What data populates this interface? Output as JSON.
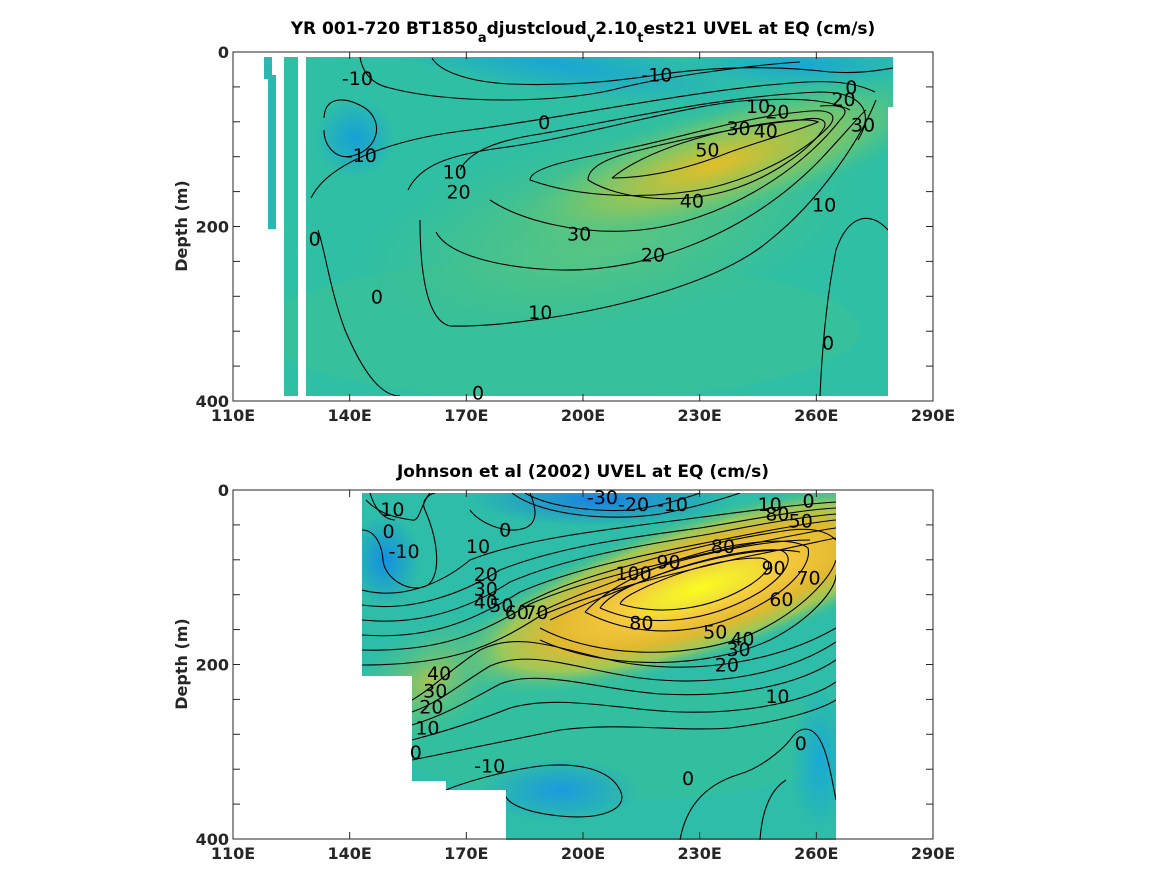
{
  "chart_data": [
    {
      "type": "contour",
      "title": "YR 001-720 BT1850",
      "title_sub1": "a",
      "title_mid": "djustcloud",
      "title_sub2": "v",
      "title_mid2": "2.10",
      "title_sub3": "t",
      "title_end": "est21 UVEL at EQ (cm/s)",
      "xlabel": "",
      "ylabel": "Depth (m)",
      "xlim": [
        110,
        290
      ],
      "ylim": [
        0,
        400
      ],
      "y_reversed": true,
      "x_ticks": [
        "110E",
        "140E",
        "170E",
        "200E",
        "230E",
        "260E",
        "290E"
      ],
      "y_ticks": [
        "0",
        "200",
        "400"
      ],
      "colormap": "parula",
      "contour_labels": [
        {
          "text": "-10",
          "lon": 142,
          "depth": 30
        },
        {
          "text": "-10",
          "lon": 219,
          "depth": 26
        },
        {
          "text": "0",
          "lon": 269,
          "depth": 40
        },
        {
          "text": "10",
          "lon": 245,
          "depth": 62
        },
        {
          "text": "20",
          "lon": 250,
          "depth": 68
        },
        {
          "text": "20",
          "lon": 267,
          "depth": 54
        },
        {
          "text": "0",
          "lon": 190,
          "depth": 80
        },
        {
          "text": "30",
          "lon": 240,
          "depth": 87
        },
        {
          "text": "40",
          "lon": 247,
          "depth": 90
        },
        {
          "text": "30",
          "lon": 272,
          "depth": 83
        },
        {
          "text": "-10",
          "lon": 143,
          "depth": 118
        },
        {
          "text": "50",
          "lon": 232,
          "depth": 112
        },
        {
          "text": "10",
          "lon": 167,
          "depth": 137
        },
        {
          "text": "20",
          "lon": 168,
          "depth": 160
        },
        {
          "text": "40",
          "lon": 228,
          "depth": 170
        },
        {
          "text": "10",
          "lon": 262,
          "depth": 175
        },
        {
          "text": "0",
          "lon": 131,
          "depth": 214
        },
        {
          "text": "30",
          "lon": 199,
          "depth": 208
        },
        {
          "text": "20",
          "lon": 218,
          "depth": 232
        },
        {
          "text": "0",
          "lon": 147,
          "depth": 280
        },
        {
          "text": "10",
          "lon": 189,
          "depth": 298
        },
        {
          "text": "0",
          "lon": 263,
          "depth": 333
        },
        {
          "text": "0",
          "lon": 173,
          "depth": 390
        }
      ]
    },
    {
      "type": "contour",
      "title": "Johnson et al (2002) UVEL at EQ (cm/s)",
      "xlabel": "",
      "ylabel": "Depth (m)",
      "xlim": [
        110,
        290
      ],
      "ylim": [
        0,
        400
      ],
      "y_reversed": true,
      "x_ticks": [
        "110E",
        "140E",
        "170E",
        "200E",
        "230E",
        "260E",
        "290E"
      ],
      "y_ticks": [
        "0",
        "200",
        "400"
      ],
      "colormap": "parula",
      "contour_labels": [
        {
          "text": "-30",
          "lon": 205,
          "depth": 8
        },
        {
          "text": "-20",
          "lon": 213,
          "depth": 16
        },
        {
          "text": "-10",
          "lon": 223,
          "depth": 16
        },
        {
          "text": "10",
          "lon": 248,
          "depth": 16
        },
        {
          "text": "0",
          "lon": 258,
          "depth": 12
        },
        {
          "text": "10",
          "lon": 151,
          "depth": 22
        },
        {
          "text": "80",
          "lon": 250,
          "depth": 27
        },
        {
          "text": "50",
          "lon": 256,
          "depth": 35
        },
        {
          "text": "0",
          "lon": 150,
          "depth": 47
        },
        {
          "text": "0",
          "lon": 180,
          "depth": 45
        },
        {
          "text": "-10",
          "lon": 154,
          "depth": 70
        },
        {
          "text": "10",
          "lon": 173,
          "depth": 64
        },
        {
          "text": "80",
          "lon": 236,
          "depth": 64
        },
        {
          "text": "90",
          "lon": 222,
          "depth": 82
        },
        {
          "text": "100",
          "lon": 213,
          "depth": 95
        },
        {
          "text": "20",
          "lon": 175,
          "depth": 96
        },
        {
          "text": "90",
          "lon": 249,
          "depth": 89
        },
        {
          "text": "70",
          "lon": 258,
          "depth": 100
        },
        {
          "text": "30",
          "lon": 175,
          "depth": 113
        },
        {
          "text": "60",
          "lon": 251,
          "depth": 125
        },
        {
          "text": "40",
          "lon": 175,
          "depth": 128
        },
        {
          "text": "50",
          "lon": 179,
          "depth": 132
        },
        {
          "text": "60",
          "lon": 183,
          "depth": 140
        },
        {
          "text": "70",
          "lon": 188,
          "depth": 140
        },
        {
          "text": "80",
          "lon": 215,
          "depth": 152
        },
        {
          "text": "50",
          "lon": 234,
          "depth": 162
        },
        {
          "text": "40",
          "lon": 241,
          "depth": 170
        },
        {
          "text": "30",
          "lon": 240,
          "depth": 182
        },
        {
          "text": "20",
          "lon": 237,
          "depth": 200
        },
        {
          "text": "40",
          "lon": 163,
          "depth": 210
        },
        {
          "text": "30",
          "lon": 162,
          "depth": 230
        },
        {
          "text": "20",
          "lon": 161,
          "depth": 248
        },
        {
          "text": "10",
          "lon": 250,
          "depth": 236
        },
        {
          "text": "10",
          "lon": 160,
          "depth": 272
        },
        {
          "text": "0",
          "lon": 256,
          "depth": 290
        },
        {
          "text": "0",
          "lon": 157,
          "depth": 300
        },
        {
          "text": "-10",
          "lon": 176,
          "depth": 316
        },
        {
          "text": "0",
          "lon": 227,
          "depth": 330
        }
      ]
    }
  ]
}
